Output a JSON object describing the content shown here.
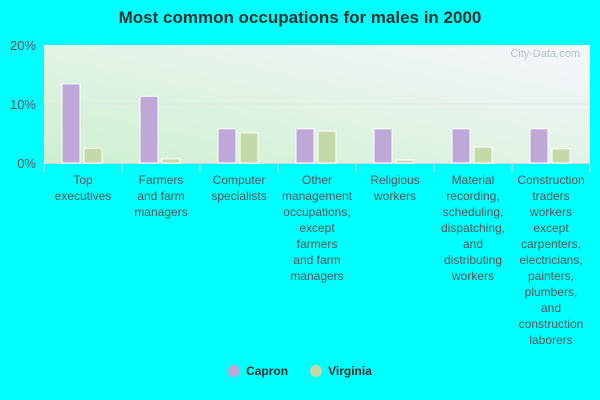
{
  "chart_data": {
    "type": "bar",
    "title": "Most common occupations for males in 2000",
    "categories": [
      "Top executives",
      "Farmers and farm managers",
      "Computer specialists",
      "Other management occupations, except farmers and farm managers",
      "Religious workers",
      "Material recording, scheduling, dispatching, and distributing workers",
      "Construction traders workers except carpenters, electricians, painters, plumbers, and construction laborers"
    ],
    "category_lines": [
      [
        "Top",
        "executives"
      ],
      [
        "Farmers",
        "and farm",
        "managers"
      ],
      [
        "Computer",
        "specialists"
      ],
      [
        "Other",
        "management",
        "occupations,",
        "except",
        "farmers",
        "and farm",
        "managers"
      ],
      [
        "Religious",
        "workers"
      ],
      [
        "Material",
        "recording,",
        "scheduling,",
        "dispatching,",
        "and",
        "distributing",
        "workers"
      ],
      [
        "Construction",
        "traders",
        "workers",
        "except",
        "carpenters,",
        "electricians,",
        "painters,",
        "plumbers,",
        "and",
        "construction",
        "laborers"
      ]
    ],
    "series": [
      {
        "name": "Capron",
        "color": "#bea8d8",
        "values": [
          13.4,
          11.3,
          5.8,
          5.8,
          5.8,
          5.8,
          5.8
        ]
      },
      {
        "name": "Virginia",
        "color": "#c4d9a8",
        "values": [
          2.5,
          0.7,
          5.1,
          5.4,
          0.5,
          2.7,
          2.4
        ]
      }
    ],
    "yticks": [
      "0%",
      "10%",
      "20%"
    ],
    "ytick_values": [
      0,
      10,
      20
    ],
    "ylim": [
      0,
      20
    ],
    "grid": true,
    "legend_position": "bottom",
    "watermark": "City-Data.com"
  }
}
